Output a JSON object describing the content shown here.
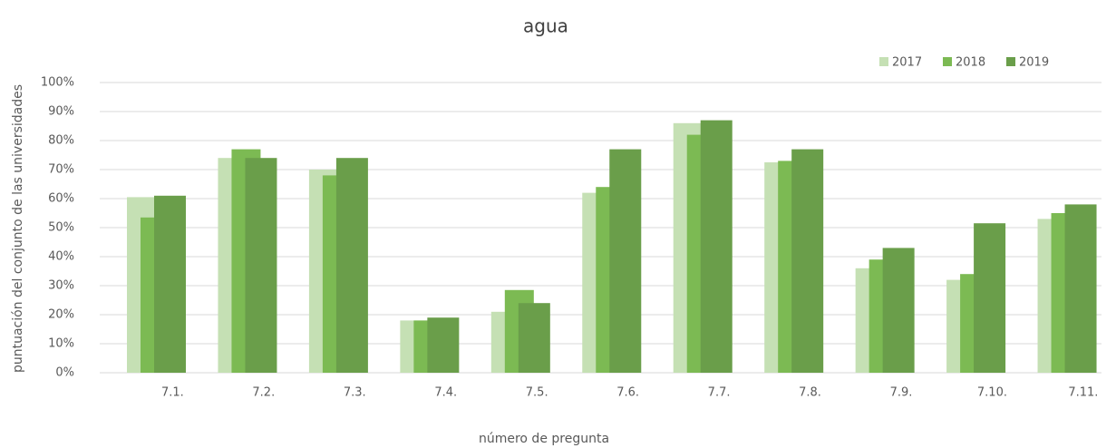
{
  "chart_data": {
    "type": "bar",
    "title": "agua",
    "x_label": "número de pregunta",
    "y_label": "puntuación del conjunto de las universidades",
    "categories": [
      "7.1.",
      "7.2.",
      "7.3.",
      "7.4.",
      "7.5.",
      "7.6.",
      "7.7.",
      "7.8.",
      "7.9.",
      "7.10.",
      "7.11."
    ],
    "series": [
      {
        "name": "2017",
        "color": "#c5e0b4",
        "values": [
          60.5,
          74,
          70,
          18,
          21,
          62,
          86,
          72.5,
          36,
          32,
          53
        ]
      },
      {
        "name": "2018",
        "color": "#7cba53",
        "values": [
          53.5,
          77,
          68,
          18,
          28.5,
          64,
          82,
          73,
          39,
          34,
          55
        ]
      },
      {
        "name": "2019",
        "color": "#6a9e4a",
        "values": [
          61,
          74,
          74,
          19,
          24,
          77,
          87,
          77,
          43,
          51.5,
          58
        ]
      }
    ],
    "ylim": [
      0,
      100
    ],
    "yticks": [
      {
        "value": 0,
        "label": "0%"
      },
      {
        "value": 10,
        "label": "10%"
      },
      {
        "value": 20,
        "label": "20%"
      },
      {
        "value": 30,
        "label": "30%"
      },
      {
        "value": 40,
        "label": "40%"
      },
      {
        "value": 50,
        "label": "50%"
      },
      {
        "value": 60,
        "label": "60%"
      },
      {
        "value": 70,
        "label": "70%"
      },
      {
        "value": 80,
        "label": "80%"
      },
      {
        "value": 90,
        "label": "90%"
      },
      {
        "value": 100,
        "label": "100%"
      }
    ],
    "grid": true,
    "legend": "top-right"
  }
}
